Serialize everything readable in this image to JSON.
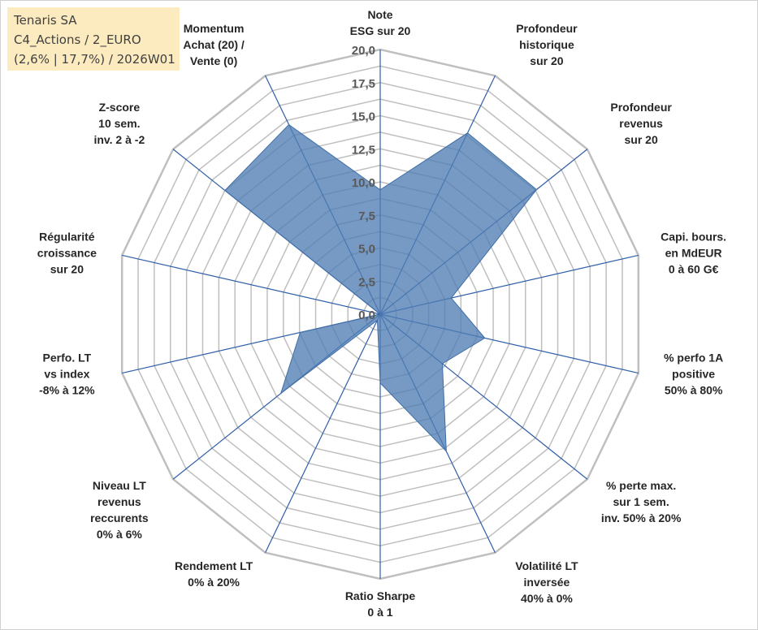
{
  "info": {
    "company": "Tenaris SA",
    "category": "C4_Actions / 2_EURO",
    "stats": "(2,6% | 17,7%) / 2026W01"
  },
  "chart_data": {
    "type": "radar",
    "title": "Tenaris SA",
    "rmax": 20,
    "ticks": [
      "0,0",
      "2,5",
      "5,0",
      "7,5",
      "10,0",
      "12,5",
      "15,0",
      "17,5",
      "20,0"
    ],
    "tick_values": [
      0,
      2.5,
      5,
      7.5,
      10,
      12.5,
      15,
      17.5,
      20
    ],
    "grid_step": 1.25,
    "axes": [
      {
        "label": [
          "Note",
          "ESG sur 20"
        ],
        "value": 9.4
      },
      {
        "label": [
          "Profondeur",
          "historique",
          "sur 20"
        ],
        "value": 15.2
      },
      {
        "label": [
          "Profondeur",
          "revenus",
          "sur 20"
        ],
        "value": 15.1
      },
      {
        "label": [
          "Capi. bours.",
          "en MdEUR",
          "0 à 60 G€"
        ],
        "value": 5.5
      },
      {
        "label": [
          "% perfo 1A",
          "positive",
          "50% à 80%"
        ],
        "value": 8.1
      },
      {
        "label": [
          "% perte max.",
          "sur 1 sem.",
          "inv. 50% à 20%"
        ],
        "value": 6.0
      },
      {
        "label": [
          "Volatilité LT",
          "inversée",
          "40% à 0%"
        ],
        "value": 11.5
      },
      {
        "label": [
          "Ratio Sharpe",
          "0 à 1"
        ],
        "value": 5.2
      },
      {
        "label": [
          "Rendement LT",
          "0% à 20%"
        ],
        "value": 0.5
      },
      {
        "label": [
          "Niveau LT",
          "revenus",
          "reccurents",
          "0% à 6%"
        ],
        "value": 9.6
      },
      {
        "label": [
          "Perfo. LT",
          "vs index",
          "-8% à 12%"
        ],
        "value": 6.2
      },
      {
        "label": [
          "Régularité",
          "croissance",
          "sur 20"
        ],
        "value": 0.0
      },
      {
        "label": [
          "Z-score",
          "10 sem.",
          "inv. 2 à -2"
        ],
        "value": 15.0
      },
      {
        "label": [
          "Momentum",
          "Achat (20) /",
          "Vente (0)"
        ],
        "value": 15.9
      }
    ],
    "colors": {
      "fill": "#4f7db3",
      "stroke": "#3f6ea6",
      "grid": "#bfbfbf",
      "spoke": "#2f5ea8"
    }
  }
}
